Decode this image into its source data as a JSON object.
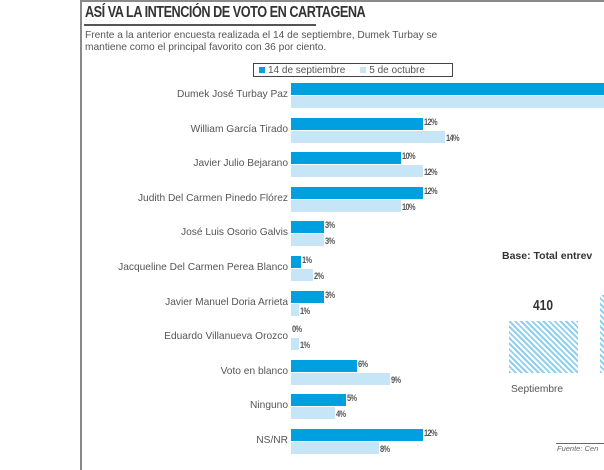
{
  "header": {
    "title": "ASÍ VA LA INTENCIÓN DE VOTO EN CARTAGENA",
    "subtitle": "Frente a la anterior encuesta realizada el 14 de septiembre, Dumek Turbay se mantiene como el principal favorito con 36 por ciento."
  },
  "colors": {
    "series_sep": "#009fe0",
    "series_oct": "#c6e6f7",
    "hatch": "#8fd0ee"
  },
  "chart_data": {
    "type": "bar",
    "orientation": "horizontal",
    "title": "ASÍ VA LA INTENCIÓN DE VOTO EN CARTAGENA",
    "xlabel": "",
    "ylabel": "",
    "unit": "%",
    "xlim": [
      0,
      36
    ],
    "grid": false,
    "legend_position": "top",
    "categories": [
      "Dumek José Turbay Paz",
      "William García Tirado",
      "Javier Julio Bejarano",
      "Judith Del Carmen Pinedo Flórez",
      "José Luis Osorio Galvis",
      "Jacqueline Del Carmen Perea Blanco",
      "Javier Manuel Doria Arrieta",
      "Eduardo Villanueva Orozco",
      "Voto en blanco",
      "Ninguno",
      "NS/NR"
    ],
    "series": [
      {
        "name": "14 de septiembre",
        "values": [
          36,
          12,
          10,
          12,
          3,
          1,
          3,
          0,
          6,
          5,
          12
        ],
        "labels": [
          "",
          "12%",
          "10%",
          "12%",
          "3%",
          "1%",
          "3%",
          "0%",
          "6%",
          "5%",
          "12%"
        ]
      },
      {
        "name": "5 de octubre",
        "values": [
          36,
          14,
          12,
          10,
          3,
          2,
          1,
          1,
          9,
          4,
          8
        ],
        "labels": [
          "",
          "14%",
          "12%",
          "10%",
          "3%",
          "2%",
          "1%",
          "1%",
          "9%",
          "4%",
          "8%"
        ]
      }
    ],
    "annotations": [
      "Dumek Turbay 36% (bar cut off at image edge)"
    ]
  },
  "sample": {
    "title": "Base: Total entrev",
    "bars": [
      {
        "label": "Septiembre",
        "value": 410
      }
    ],
    "source": "Fuente: Cen"
  }
}
